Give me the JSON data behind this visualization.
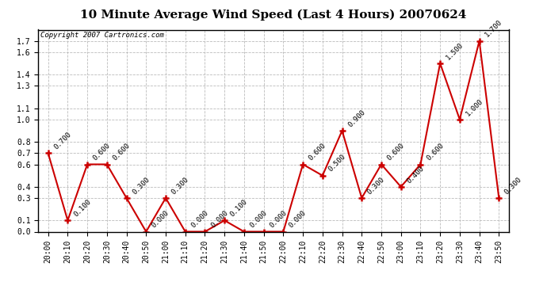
{
  "title": "10 Minute Average Wind Speed (Last 4 Hours) 20070624",
  "copyright": "Copyright 2007 Cartronics.com",
  "x_labels": [
    "20:00",
    "20:10",
    "20:20",
    "20:30",
    "20:40",
    "20:50",
    "21:00",
    "21:10",
    "21:20",
    "21:30",
    "21:40",
    "21:50",
    "22:00",
    "22:10",
    "22:20",
    "22:30",
    "22:40",
    "22:50",
    "23:00",
    "23:10",
    "23:20",
    "23:30",
    "23:40",
    "23:50"
  ],
  "y_values": [
    0.7,
    0.1,
    0.6,
    0.6,
    0.3,
    0.0,
    0.3,
    0.0,
    0.0,
    0.1,
    0.0,
    0.0,
    0.0,
    0.6,
    0.5,
    0.9,
    0.3,
    0.6,
    0.4,
    0.6,
    1.5,
    1.0,
    1.7,
    0.3
  ],
  "line_color": "#cc0000",
  "marker_color": "#cc0000",
  "background_color": "#ffffff",
  "grid_color": "#bbbbbb",
  "title_fontsize": 11,
  "copyright_fontsize": 6.5,
  "annotation_fontsize": 6.5,
  "tick_fontsize": 7,
  "ylim": [
    0.0,
    1.8
  ],
  "yticks": [
    0.0,
    0.1,
    0.3,
    0.4,
    0.6,
    0.7,
    0.8,
    1.0,
    1.1,
    1.3,
    1.4,
    1.6,
    1.7
  ]
}
